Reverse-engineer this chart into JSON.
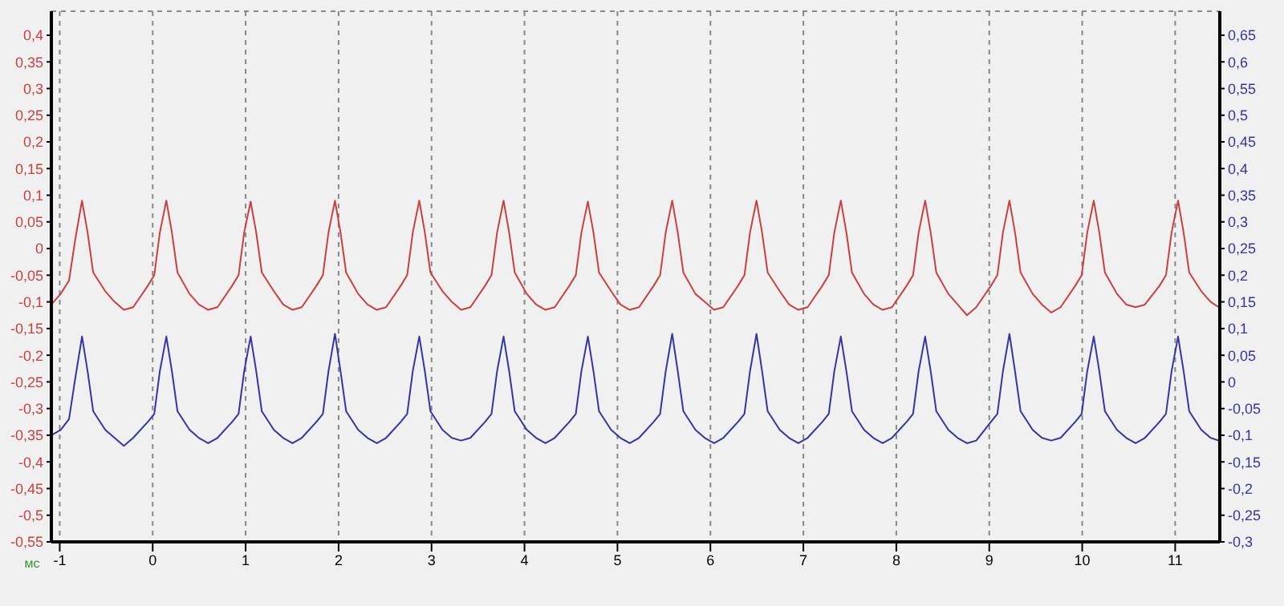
{
  "chart_data": {
    "type": "line",
    "xlabel": "мс",
    "x": [
      -1.09,
      -0.99,
      -0.9,
      -0.83,
      -0.76,
      -0.7,
      -0.64,
      -0.51,
      -0.41,
      -0.31,
      -0.21,
      -0.053,
      0.017,
      0.077,
      0.147,
      0.207,
      0.267,
      0.397,
      0.497,
      0.597,
      0.697,
      0.854,
      0.924,
      0.984,
      1.054,
      1.114,
      1.174,
      1.304,
      1.404,
      1.504,
      1.604,
      1.761,
      1.831,
      1.891,
      1.961,
      2.021,
      2.081,
      2.211,
      2.311,
      2.411,
      2.511,
      2.668,
      2.738,
      2.798,
      2.868,
      2.928,
      2.988,
      3.118,
      3.218,
      3.318,
      3.418,
      3.575,
      3.645,
      3.705,
      3.775,
      3.835,
      3.895,
      4.025,
      4.125,
      4.225,
      4.325,
      4.482,
      4.552,
      4.612,
      4.682,
      4.742,
      4.802,
      4.932,
      5.032,
      5.132,
      5.232,
      5.389,
      5.459,
      5.519,
      5.589,
      5.649,
      5.709,
      5.839,
      5.939,
      6.039,
      6.139,
      6.296,
      6.366,
      6.426,
      6.496,
      6.556,
      6.616,
      6.746,
      6.846,
      6.946,
      7.046,
      7.203,
      7.273,
      7.333,
      7.403,
      7.463,
      7.523,
      7.653,
      7.753,
      7.853,
      7.953,
      8.11,
      8.18,
      8.24,
      8.31,
      8.37,
      8.43,
      8.56,
      8.66,
      8.76,
      8.86,
      9.017,
      9.087,
      9.147,
      9.217,
      9.277,
      9.337,
      9.467,
      9.567,
      9.667,
      9.767,
      9.924,
      9.994,
      10.054,
      10.124,
      10.184,
      10.244,
      10.374,
      10.474,
      10.574,
      10.674,
      10.831,
      10.901,
      10.961,
      11.031,
      11.091,
      11.151,
      11.281,
      11.381,
      11.47
    ],
    "series": [
      {
        "color": "#c84040",
        "values": [
          -0.105,
          -0.085,
          -0.06,
          0.02,
          0.09,
          0.03,
          -0.045,
          -0.08,
          -0.1,
          -0.115,
          -0.11,
          -0.07,
          -0.05,
          0.03,
          0.09,
          0.03,
          -0.045,
          -0.085,
          -0.105,
          -0.115,
          -0.11,
          -0.07,
          -0.05,
          0.03,
          0.088,
          0.03,
          -0.045,
          -0.08,
          -0.105,
          -0.115,
          -0.11,
          -0.07,
          -0.05,
          0.03,
          0.09,
          0.03,
          -0.045,
          -0.085,
          -0.105,
          -0.115,
          -0.11,
          -0.07,
          -0.05,
          0.03,
          0.09,
          0.03,
          -0.045,
          -0.08,
          -0.1,
          -0.115,
          -0.11,
          -0.07,
          -0.05,
          0.03,
          0.09,
          0.03,
          -0.045,
          -0.085,
          -0.105,
          -0.115,
          -0.11,
          -0.07,
          -0.05,
          0.03,
          0.088,
          0.03,
          -0.045,
          -0.08,
          -0.105,
          -0.115,
          -0.11,
          -0.07,
          -0.05,
          0.03,
          0.09,
          0.03,
          -0.045,
          -0.085,
          -0.1,
          -0.115,
          -0.11,
          -0.07,
          -0.05,
          0.03,
          0.09,
          0.03,
          -0.045,
          -0.08,
          -0.105,
          -0.115,
          -0.11,
          -0.07,
          -0.05,
          0.03,
          0.09,
          0.03,
          -0.045,
          -0.085,
          -0.105,
          -0.115,
          -0.11,
          -0.07,
          -0.05,
          0.03,
          0.09,
          0.03,
          -0.045,
          -0.085,
          -0.105,
          -0.125,
          -0.11,
          -0.07,
          -0.05,
          0.03,
          0.09,
          0.03,
          -0.045,
          -0.085,
          -0.105,
          -0.12,
          -0.11,
          -0.07,
          -0.05,
          0.03,
          0.09,
          0.03,
          -0.045,
          -0.085,
          -0.105,
          -0.11,
          -0.105,
          -0.07,
          -0.05,
          0.03,
          0.09,
          0.03,
          -0.045,
          -0.08,
          -0.1,
          -0.11
        ]
      },
      {
        "axis": "y2",
        "color": "#3434a4",
        "values": [
          -0.1,
          -0.09,
          -0.07,
          0.01,
          0.085,
          0.02,
          -0.055,
          -0.09,
          -0.105,
          -0.12,
          -0.105,
          -0.075,
          -0.06,
          0.02,
          0.085,
          0.02,
          -0.055,
          -0.09,
          -0.105,
          -0.115,
          -0.105,
          -0.075,
          -0.06,
          0.02,
          0.085,
          0.02,
          -0.055,
          -0.09,
          -0.105,
          -0.115,
          -0.105,
          -0.075,
          -0.06,
          0.02,
          0.09,
          0.02,
          -0.055,
          -0.09,
          -0.105,
          -0.115,
          -0.105,
          -0.075,
          -0.06,
          0.02,
          0.085,
          0.02,
          -0.055,
          -0.09,
          -0.105,
          -0.11,
          -0.105,
          -0.075,
          -0.06,
          0.02,
          0.085,
          0.02,
          -0.055,
          -0.09,
          -0.105,
          -0.115,
          -0.105,
          -0.075,
          -0.06,
          0.02,
          0.085,
          0.02,
          -0.055,
          -0.09,
          -0.105,
          -0.115,
          -0.105,
          -0.075,
          -0.06,
          0.02,
          0.09,
          0.02,
          -0.055,
          -0.09,
          -0.105,
          -0.115,
          -0.105,
          -0.075,
          -0.06,
          0.02,
          0.09,
          0.02,
          -0.055,
          -0.09,
          -0.105,
          -0.115,
          -0.105,
          -0.075,
          -0.06,
          0.02,
          0.085,
          0.02,
          -0.055,
          -0.09,
          -0.105,
          -0.115,
          -0.105,
          -0.075,
          -0.06,
          0.02,
          0.085,
          0.02,
          -0.055,
          -0.09,
          -0.105,
          -0.115,
          -0.11,
          -0.075,
          -0.06,
          0.02,
          0.09,
          0.02,
          -0.055,
          -0.09,
          -0.105,
          -0.11,
          -0.105,
          -0.075,
          -0.06,
          0.02,
          0.085,
          0.02,
          -0.055,
          -0.09,
          -0.105,
          -0.115,
          -0.105,
          -0.075,
          -0.06,
          0.02,
          0.085,
          0.02,
          -0.055,
          -0.09,
          -0.105,
          -0.11
        ]
      }
    ],
    "xlim": [
      -1.09,
      11.48
    ],
    "xticks": [
      -1,
      0,
      1,
      2,
      3,
      4,
      5,
      6,
      7,
      8,
      9,
      10,
      11
    ],
    "ylim": [
      -0.55,
      0.445
    ],
    "yticks": [
      {
        "value": -0.55,
        "label": "-0,55"
      },
      {
        "value": -0.5,
        "label": "-0,5"
      },
      {
        "value": -0.45,
        "label": "-0,45"
      },
      {
        "value": -0.4,
        "label": "-0,4"
      },
      {
        "value": -0.35,
        "label": "-0,35"
      },
      {
        "value": -0.3,
        "label": "-0,3"
      },
      {
        "value": -0.25,
        "label": "-0,25"
      },
      {
        "value": -0.2,
        "label": "-0,2"
      },
      {
        "value": -0.15,
        "label": "-0,15"
      },
      {
        "value": -0.1,
        "label": "-0,1"
      },
      {
        "value": -0.05,
        "label": "-0,05"
      },
      {
        "value": 0,
        "label": "0"
      },
      {
        "value": 0.05,
        "label": "0,05"
      },
      {
        "value": 0.1,
        "label": "0,1"
      },
      {
        "value": 0.15,
        "label": "0,15"
      },
      {
        "value": 0.2,
        "label": "0,2"
      },
      {
        "value": 0.25,
        "label": "0,25"
      },
      {
        "value": 0.3,
        "label": "0,3"
      },
      {
        "value": 0.35,
        "label": "0,35"
      },
      {
        "value": 0.4,
        "label": "0,4"
      }
    ],
    "y2lim": [
      -0.3,
      0.695
    ],
    "y2ticks": [
      {
        "value": -0.3,
        "label": "-0,3"
      },
      {
        "value": -0.25,
        "label": "-0,25"
      },
      {
        "value": -0.2,
        "label": "-0,2"
      },
      {
        "value": -0.15,
        "label": "-0,15"
      },
      {
        "value": -0.1,
        "label": "-0,1"
      },
      {
        "value": -0.05,
        "label": "-0,05"
      },
      {
        "value": 0,
        "label": "0"
      },
      {
        "value": 0.05,
        "label": "0,05"
      },
      {
        "value": 0.1,
        "label": "0,1"
      },
      {
        "value": 0.15,
        "label": "0,15"
      },
      {
        "value": 0.2,
        "label": "0,2"
      },
      {
        "value": 0.25,
        "label": "0,25"
      },
      {
        "value": 0.3,
        "label": "0,3"
      },
      {
        "value": 0.35,
        "label": "0,35"
      },
      {
        "value": 0.4,
        "label": "0,4"
      },
      {
        "value": 0.45,
        "label": "0,45"
      },
      {
        "value": 0.5,
        "label": "0,5"
      },
      {
        "value": 0.55,
        "label": "0,55"
      },
      {
        "value": 0.6,
        "label": "0,6"
      },
      {
        "value": 0.65,
        "label": "0,65"
      }
    ],
    "grid": true
  }
}
